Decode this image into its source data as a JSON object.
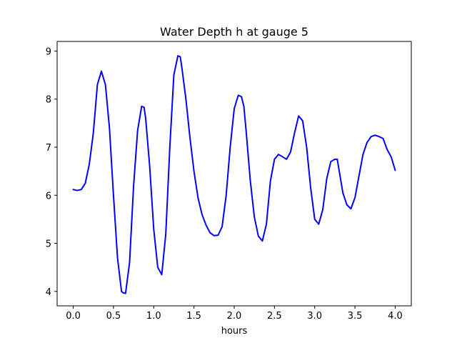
{
  "chart_data": {
    "type": "line",
    "title": "Water Depth h at gauge 5",
    "xlabel": "hours",
    "ylabel": "",
    "xlim": [
      -0.2,
      4.2
    ],
    "ylim": [
      3.7,
      9.2
    ],
    "xticks": [
      0.0,
      0.5,
      1.0,
      1.5,
      2.0,
      2.5,
      3.0,
      3.5,
      4.0
    ],
    "xtick_labels": [
      "0.0",
      "0.5",
      "1.0",
      "1.5",
      "2.0",
      "2.5",
      "3.0",
      "3.5",
      "4.0"
    ],
    "yticks": [
      4,
      5,
      6,
      7,
      8,
      9
    ],
    "ytick_labels": [
      "4",
      "5",
      "6",
      "7",
      "8",
      "9"
    ],
    "grid": false,
    "series": [
      {
        "color": "#0000ff",
        "x": [
          0.0,
          0.05,
          0.1,
          0.15,
          0.2,
          0.25,
          0.3,
          0.35,
          0.4,
          0.45,
          0.5,
          0.55,
          0.6,
          0.62,
          0.65,
          0.7,
          0.75,
          0.8,
          0.85,
          0.88,
          0.9,
          0.95,
          1.0,
          1.05,
          1.1,
          1.15,
          1.2,
          1.25,
          1.3,
          1.33,
          1.35,
          1.4,
          1.45,
          1.5,
          1.55,
          1.6,
          1.65,
          1.7,
          1.75,
          1.8,
          1.85,
          1.9,
          1.95,
          2.0,
          2.05,
          2.09,
          2.12,
          2.15,
          2.2,
          2.25,
          2.3,
          2.35,
          2.4,
          2.45,
          2.5,
          2.55,
          2.6,
          2.65,
          2.7,
          2.75,
          2.8,
          2.85,
          2.9,
          2.95,
          3.0,
          3.05,
          3.1,
          3.15,
          3.2,
          3.25,
          3.28,
          3.3,
          3.35,
          3.4,
          3.45,
          3.5,
          3.55,
          3.6,
          3.65,
          3.7,
          3.75,
          3.8,
          3.85,
          3.9,
          3.95,
          4.0
        ],
        "values": [
          6.12,
          6.1,
          6.12,
          6.25,
          6.65,
          7.3,
          8.3,
          8.58,
          8.3,
          7.4,
          6.0,
          4.7,
          4.0,
          3.97,
          3.96,
          4.6,
          6.2,
          7.35,
          7.85,
          7.83,
          7.6,
          6.6,
          5.3,
          4.5,
          4.35,
          5.2,
          7.0,
          8.5,
          8.9,
          8.88,
          8.65,
          8.0,
          7.2,
          6.5,
          5.95,
          5.6,
          5.38,
          5.22,
          5.16,
          5.17,
          5.35,
          6.0,
          7.0,
          7.8,
          8.08,
          8.05,
          7.85,
          7.3,
          6.3,
          5.55,
          5.15,
          5.05,
          5.4,
          6.3,
          6.75,
          6.85,
          6.8,
          6.75,
          6.9,
          7.3,
          7.65,
          7.55,
          7.0,
          6.15,
          5.5,
          5.4,
          5.7,
          6.35,
          6.7,
          6.75,
          6.75,
          6.55,
          6.05,
          5.8,
          5.72,
          5.95,
          6.4,
          6.85,
          7.1,
          7.22,
          7.25,
          7.22,
          7.18,
          6.95,
          6.8,
          6.52
        ]
      }
    ]
  }
}
